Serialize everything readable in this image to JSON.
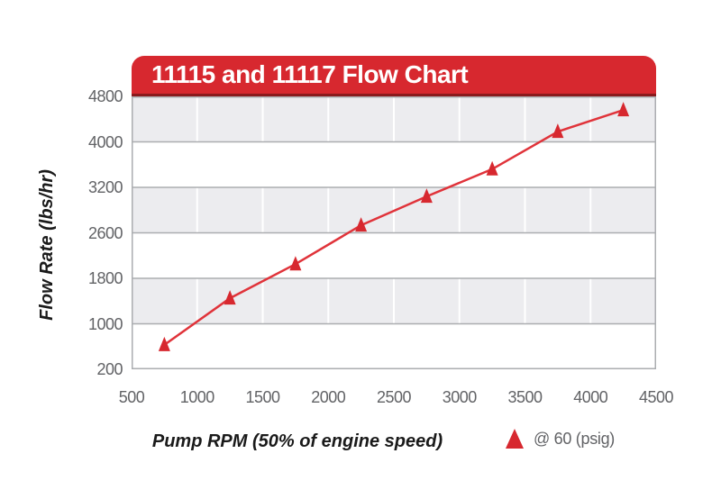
{
  "header": {
    "title": "11115 and 11117 Flow Chart"
  },
  "axes": {
    "y_title": "Flow Rate (lbs/hr)",
    "x_title": "Pump RPM (50% of engine speed)"
  },
  "legend": {
    "label": "@ 60 (psig)",
    "marker": "triangle-up",
    "marker_color": "#d7282f"
  },
  "colors": {
    "header_red": "#d7282f",
    "header_edge": "#8a1a1d",
    "band_gray": "#ececef",
    "band_white": "#ffffff",
    "grid_line": "#abadb0",
    "vertical_grid": "#ffffff",
    "line_red": "#e0333a",
    "marker_red": "#d7282f",
    "tick_text": "#626366",
    "axis_text": "#1a1a1a"
  },
  "chart_data": {
    "type": "line",
    "title": "11115 and 11117 Flow Chart",
    "xlabel": "Pump RPM (50% of engine speed)",
    "ylabel": "Flow Rate (lbs/hr)",
    "x_ticks": [
      500,
      1000,
      1500,
      2000,
      2500,
      3000,
      3500,
      4000,
      4500
    ],
    "y_ticks": [
      200,
      1000,
      1800,
      2600,
      3200,
      4000,
      4800
    ],
    "xlim": [
      500,
      4500
    ],
    "ylim": [
      200,
      4800
    ],
    "grid": "alternating horizontal gray/white bands between y ticks; vertical white lines at x ticks; y ticks equally spaced (non-linear value scale)",
    "legend_position": "bottom-right",
    "series": [
      {
        "name": "@ 60 (psig)",
        "marker": "triangle-up",
        "color": "#d7282f",
        "x": [
          750,
          1250,
          1750,
          2250,
          2750,
          3250,
          3750,
          4250
        ],
        "y": [
          630,
          1450,
          2050,
          2700,
          3080,
          3520,
          4180,
          4560
        ]
      }
    ]
  }
}
